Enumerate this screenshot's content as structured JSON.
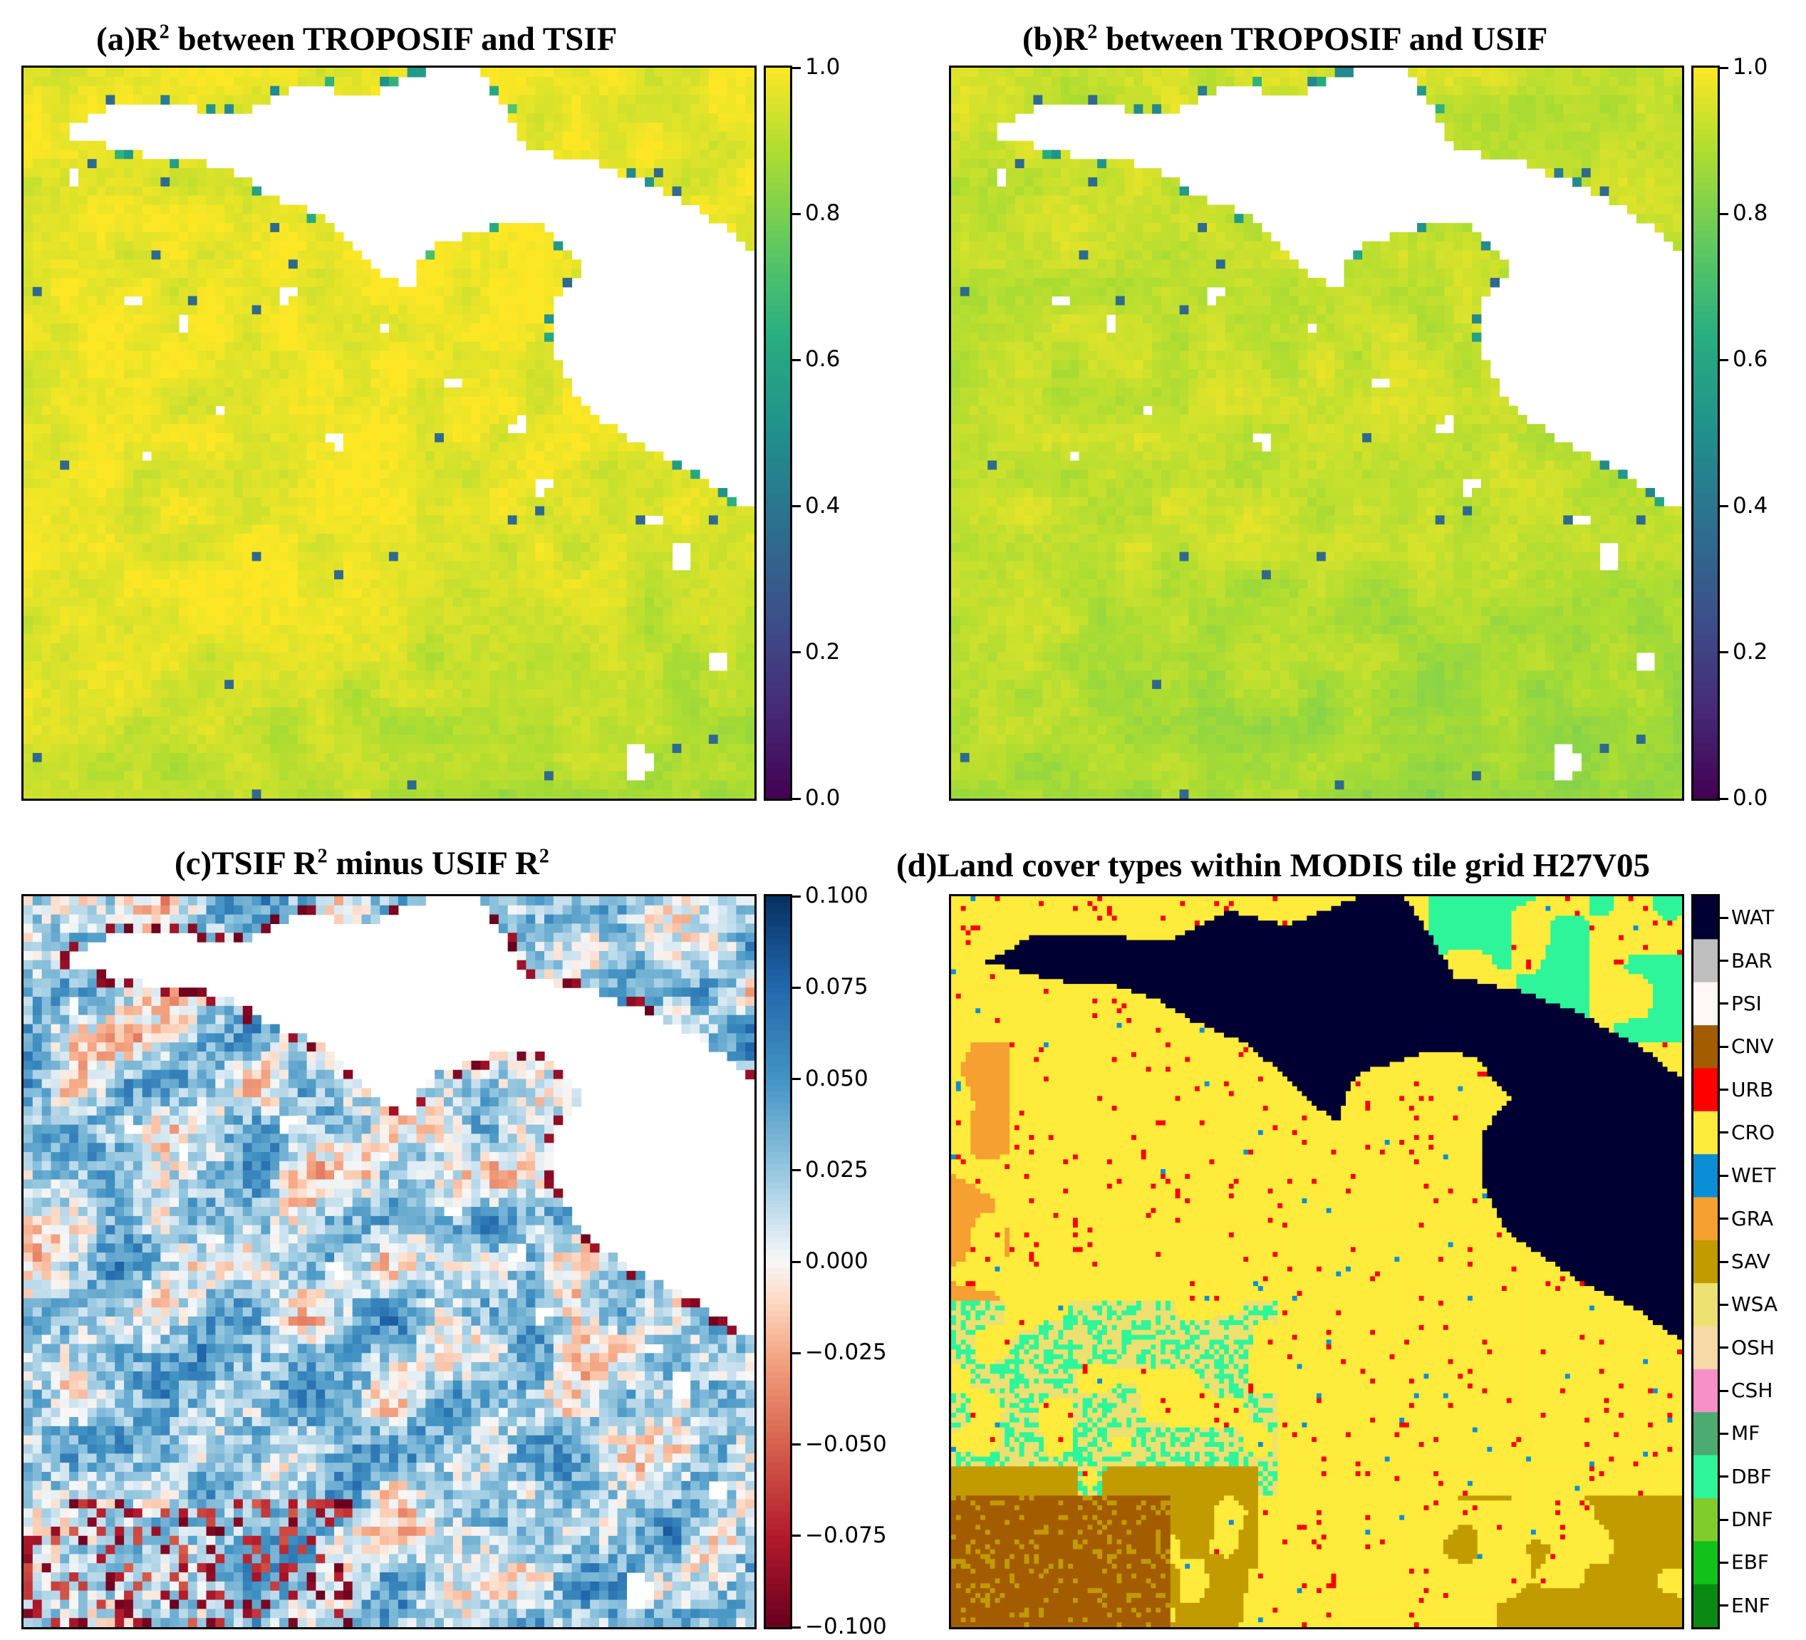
{
  "chart_data": [
    {
      "type": "heatmap",
      "panel": "a",
      "title_prefix": "(a)R",
      "title_sup": "2",
      "title_suffix": " between TROPOSIF and TSIF",
      "colormap": "viridis",
      "colorbar": {
        "min": 0.0,
        "max": 1.0,
        "ticks": [
          "0.0",
          "0.2",
          "0.4",
          "0.6",
          "0.8",
          "1.0"
        ],
        "tick_values": [
          0.0,
          0.2,
          0.4,
          0.6,
          0.8,
          1.0
        ]
      },
      "typical_value": 0.97,
      "lower_left_value": 0.85
    },
    {
      "type": "heatmap",
      "panel": "b",
      "title_prefix": "(b)R",
      "title_sup": "2",
      "title_suffix": " between TROPOSIF and USIF",
      "colormap": "viridis",
      "colorbar": {
        "min": 0.0,
        "max": 1.0,
        "ticks": [
          "0.0",
          "0.2",
          "0.4",
          "0.6",
          "0.8",
          "1.0"
        ],
        "tick_values": [
          0.0,
          0.2,
          0.4,
          0.6,
          0.8,
          1.0
        ]
      },
      "typical_value": 0.92,
      "lower_left_value": 0.82
    },
    {
      "type": "heatmap",
      "panel": "c",
      "title_prefix": "(c)TSIF R",
      "title_sup": "2",
      "title_mid": " minus USIF R",
      "title_sup2": "2",
      "colormap": "RdBu",
      "colorbar": {
        "min": -0.1,
        "max": 0.1,
        "ticks": [
          "−0.100",
          "−0.075",
          "−0.050",
          "−0.025",
          "0.000",
          "0.025",
          "0.050",
          "0.075",
          "0.100"
        ],
        "tick_values": [
          -0.1,
          -0.075,
          -0.05,
          -0.025,
          0.0,
          0.025,
          0.05,
          0.075,
          0.1
        ]
      },
      "typical_value": 0.03
    },
    {
      "type": "heatmap",
      "panel": "d",
      "title": "(d)Land cover types within MODIS tile grid H27V05",
      "colorbar_type": "categorical",
      "categories": [
        {
          "label": "WAT",
          "color": "#000033"
        },
        {
          "label": "BAR",
          "color": "#bebebe"
        },
        {
          "label": "PSI",
          "color": "#fff8f5"
        },
        {
          "label": "CNV",
          "color": "#a35c00"
        },
        {
          "label": "URB",
          "color": "#ff0000"
        },
        {
          "label": "CRO",
          "color": "#ffeb3b"
        },
        {
          "label": "WET",
          "color": "#0a8fd6"
        },
        {
          "label": "GRA",
          "color": "#f5a030"
        },
        {
          "label": "SAV",
          "color": "#c29b00"
        },
        {
          "label": "WSA",
          "color": "#ece070"
        },
        {
          "label": "OSH",
          "color": "#f7d9a8"
        },
        {
          "label": "CSH",
          "color": "#f78fc9"
        },
        {
          "label": "MF",
          "color": "#4cab70"
        },
        {
          "label": "DBF",
          "color": "#2ef59a"
        },
        {
          "label": "DNF",
          "color": "#80cc2a"
        },
        {
          "label": "EBF",
          "color": "#10c21a"
        },
        {
          "label": "ENF",
          "color": "#0a8a14"
        }
      ]
    }
  ]
}
